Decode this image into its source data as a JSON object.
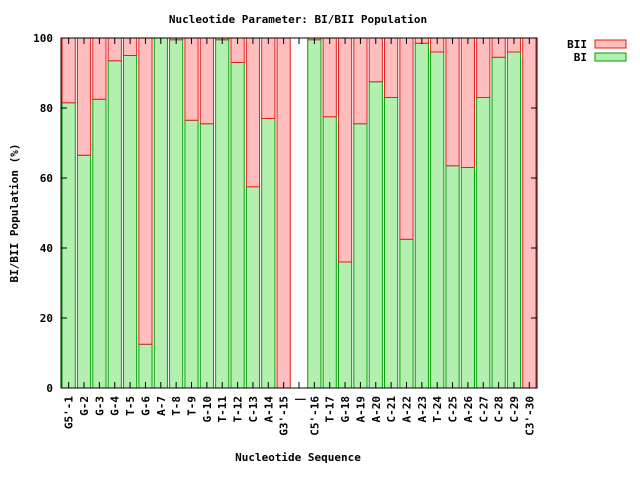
{
  "chart_data": {
    "type": "bar",
    "stacked": true,
    "title": "Nucleotide Parameter: BI/BII Population",
    "xlabel": "Nucleotide Sequence",
    "ylabel": "BI/BII Population (%)",
    "ylim": [
      0,
      100
    ],
    "yticks": [
      0,
      20,
      40,
      60,
      80,
      100
    ],
    "grid": false,
    "legend_position": "top-right",
    "categories": [
      "G5'-1",
      "G-2",
      "G-3",
      "G-4",
      "T-5",
      "G-6",
      "A-7",
      "T-8",
      "T-9",
      "G-10",
      "T-11",
      "T-12",
      "C-13",
      "A-14",
      "G3'-15",
      "|",
      "C5'-16",
      "T-17",
      "G-18",
      "A-19",
      "A-20",
      "C-21",
      "A-22",
      "A-23",
      "T-24",
      "C-25",
      "A-26",
      "C-27",
      "C-28",
      "C-29",
      "C3'-30"
    ],
    "series": [
      {
        "name": "BI",
        "color": "#b3f0b0",
        "edge_color": "#00a000",
        "values": [
          81.5,
          66.5,
          82.5,
          93.5,
          95,
          12.5,
          100,
          99.5,
          76.5,
          75.5,
          99.5,
          93,
          57.5,
          77,
          0,
          null,
          99.5,
          77.5,
          36,
          75.5,
          87.5,
          83,
          42.5,
          98.5,
          96,
          63.5,
          63,
          83,
          94.5,
          96,
          0
        ]
      },
      {
        "name": "BII",
        "color": "#ffbdbd",
        "edge_color": "#e02020",
        "values": [
          18.5,
          33.5,
          17.5,
          6.5,
          5,
          87.5,
          0,
          0.5,
          23.5,
          24.5,
          0.5,
          7,
          42.5,
          23,
          100,
          null,
          0.5,
          22.5,
          64,
          24.5,
          12.5,
          17,
          57.5,
          1.5,
          4,
          36.5,
          37,
          17,
          5.5,
          4,
          100
        ]
      }
    ]
  }
}
